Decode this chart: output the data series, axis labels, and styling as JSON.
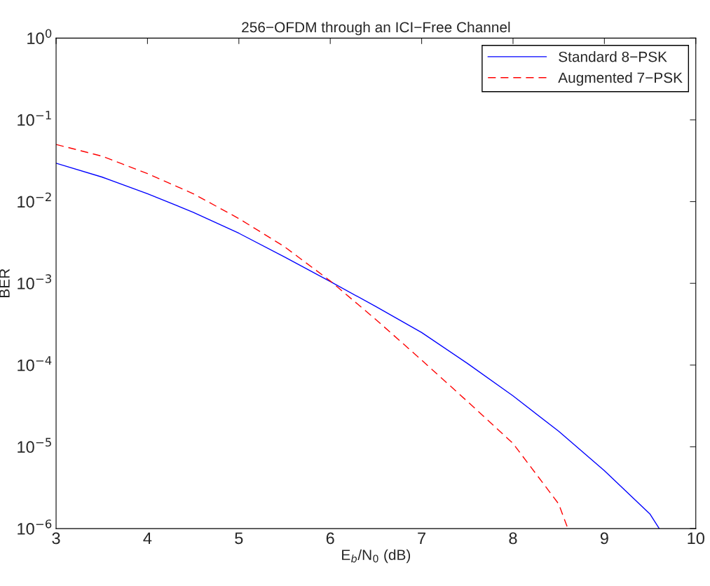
{
  "chart_data": {
    "type": "line",
    "title": "256−OFDM through an ICI−Free Channel",
    "xlabel": "E$_{b}$/N$_{0}$ (dB)",
    "ylabel": "BER",
    "log": "y",
    "grid": false,
    "legend": "top right",
    "xlim": [
      3,
      10
    ],
    "xticks": [
      3,
      4,
      5,
      6,
      7,
      8,
      9,
      10
    ],
    "ylim": [
      1e-06,
      1
    ],
    "yticks": [
      {
        "value": 1e-06,
        "label": "10$^{−6}$"
      },
      {
        "value": 1e-05,
        "label": "10$^{−5}$"
      },
      {
        "value": 0.0001,
        "label": "10$^{−4}$"
      },
      {
        "value": 0.001,
        "label": "10$^{−3}$"
      },
      {
        "value": 0.01,
        "label": "10$^{−2}$"
      },
      {
        "value": 0.1,
        "label": "10$^{−1}$"
      },
      {
        "value": 1,
        "label": "10$^{0}$"
      }
    ],
    "series": [
      {
        "name": "Standard 8−PSK",
        "color": "#0000ff",
        "line_style": "solid",
        "x": [
          3,
          3.5,
          4,
          4.5,
          5,
          5.5,
          6,
          6.5,
          7,
          7.5,
          8,
          8.5,
          9,
          9.5,
          9.6
        ],
        "values": [
          0.0295,
          0.02,
          0.0125,
          0.0074,
          0.0041,
          0.0021,
          0.00105,
          0.00052,
          0.00025,
          0.000105,
          4.2e-05,
          1.55e-05,
          5.1e-06,
          1.5e-06,
          1e-06
        ]
      },
      {
        "name": "Augmented 7−PSK",
        "color": "#ff0000",
        "line_style": "dashed",
        "x": [
          3,
          3.5,
          4,
          4.5,
          5,
          5.5,
          6,
          6.5,
          7,
          7.5,
          8,
          8.5,
          8.6
        ],
        "values": [
          0.05,
          0.036,
          0.022,
          0.0125,
          0.0062,
          0.0028,
          0.00107,
          0.00036,
          0.000115,
          3.6e-05,
          1.1e-05,
          2e-06,
          1e-06
        ]
      }
    ]
  }
}
